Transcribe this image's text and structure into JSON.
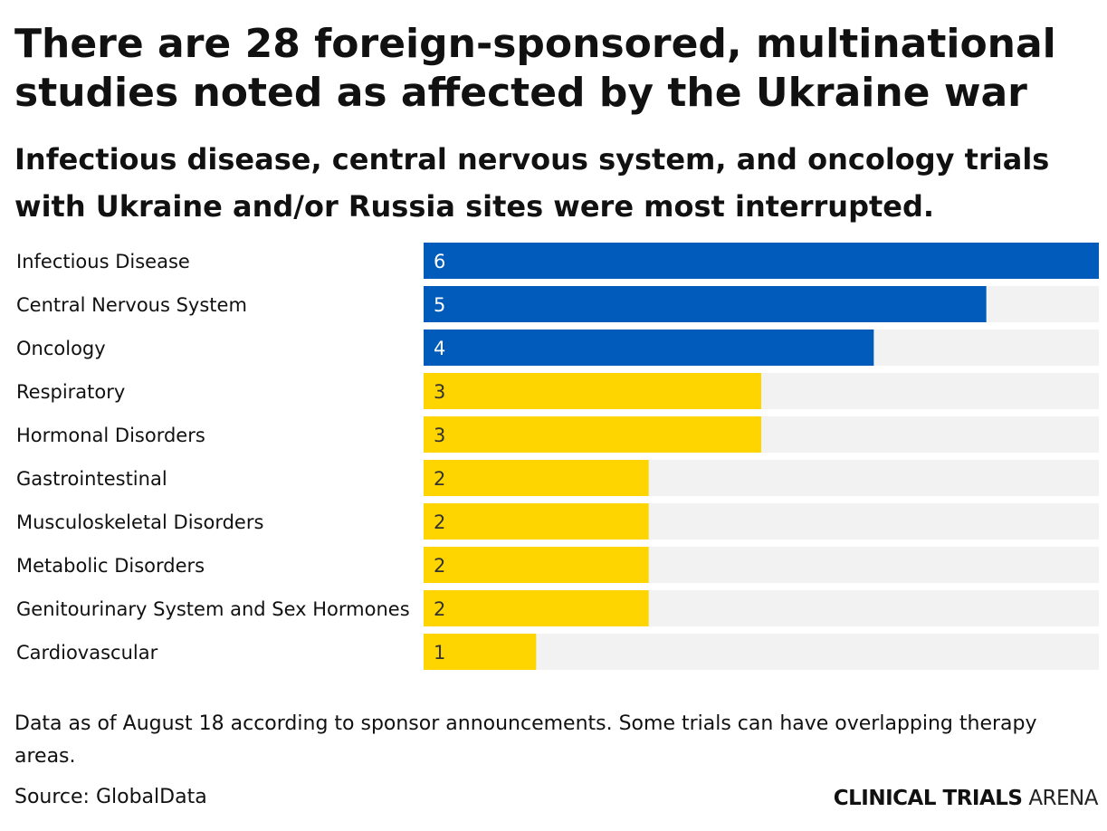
{
  "header": {
    "title": "There are 28 foreign-sponsored, multinational studies noted as affected by the Ukraine war",
    "subtitle": "Infectious disease, central nervous system, and oncology trials with Ukraine and/or Russia sites were most interrupted."
  },
  "chart_data": {
    "type": "bar",
    "orientation": "horizontal",
    "categories": [
      "Infectious Disease",
      "Central Nervous System",
      "Oncology",
      "Respiratory",
      "Hormonal Disorders",
      "Gastrointestinal",
      "Musculoskeletal Disorders",
      "Metabolic Disorders",
      "Genitourinary System and Sex Hormones",
      "Cardiovascular"
    ],
    "values": [
      6,
      5,
      4,
      3,
      3,
      2,
      2,
      2,
      2,
      1
    ],
    "xlim": [
      0,
      6
    ],
    "grid": false,
    "data_labels": true,
    "colors": {
      "highlight": "#005bbb",
      "other": "#ffd500",
      "track": "#f2f2f2",
      "label_on_highlight": "#ffffff",
      "label_on_other": "#333333"
    },
    "highlighted_count": 3
  },
  "footer": {
    "note": "Data as of August 18 according to sponsor announcements. Some trials can have overlapping therapy areas.",
    "source": "Source: GlobalData",
    "brand_strong": "CLINICAL TRIALS",
    "brand_light": "ARENA"
  }
}
